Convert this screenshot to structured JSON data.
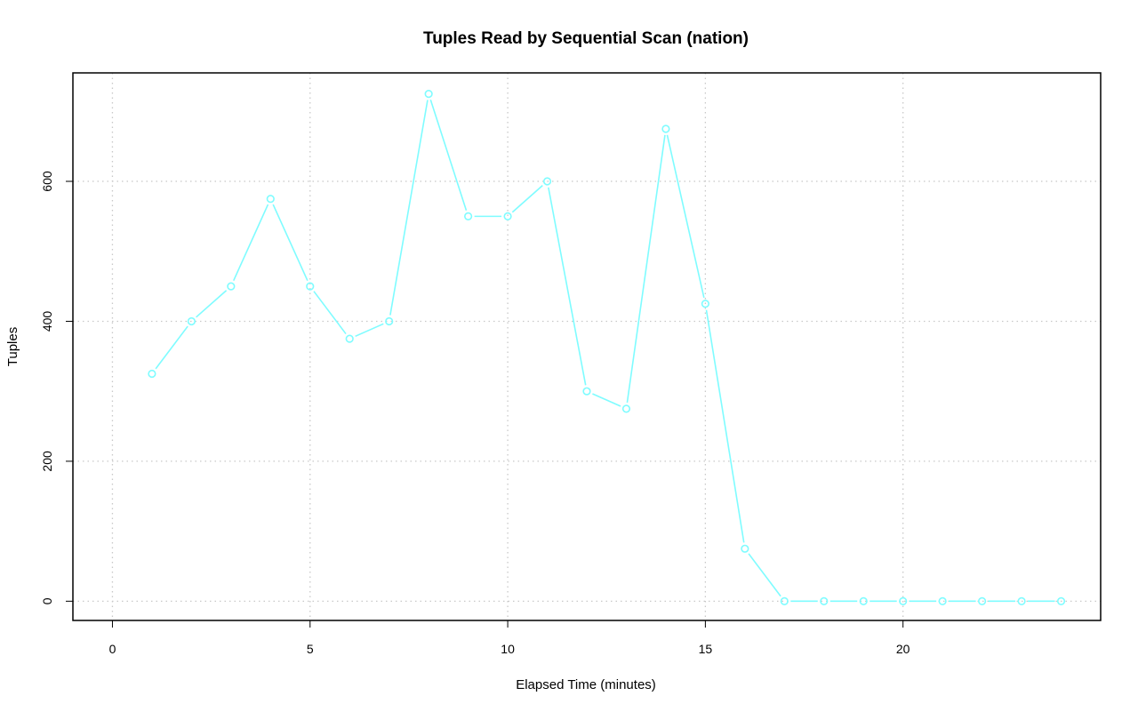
{
  "chart_data": {
    "type": "line",
    "title": "Tuples Read by Sequential Scan (nation)",
    "xlabel": "Elapsed Time (minutes)",
    "ylabel": "Tuples",
    "xlim": [
      -1,
      25
    ],
    "ylim": [
      -27.5,
      755
    ],
    "x_ticks": [
      0,
      5,
      10,
      15,
      20
    ],
    "y_ticks": [
      0,
      200,
      400,
      600
    ],
    "grid": true,
    "line_color": "#7ffcff",
    "marker": "open-circle",
    "series": [
      {
        "x": [
          1,
          2,
          3,
          4,
          5,
          6,
          7,
          8,
          9,
          10,
          11,
          12,
          13,
          14,
          15,
          16,
          17,
          18,
          19,
          20,
          21,
          22,
          23,
          24
        ],
        "values": [
          325,
          400,
          450,
          575,
          450,
          375,
          400,
          725,
          550,
          550,
          600,
          300,
          275,
          675,
          425,
          75,
          0,
          0,
          0,
          0,
          0,
          0,
          0,
          0
        ]
      }
    ]
  }
}
